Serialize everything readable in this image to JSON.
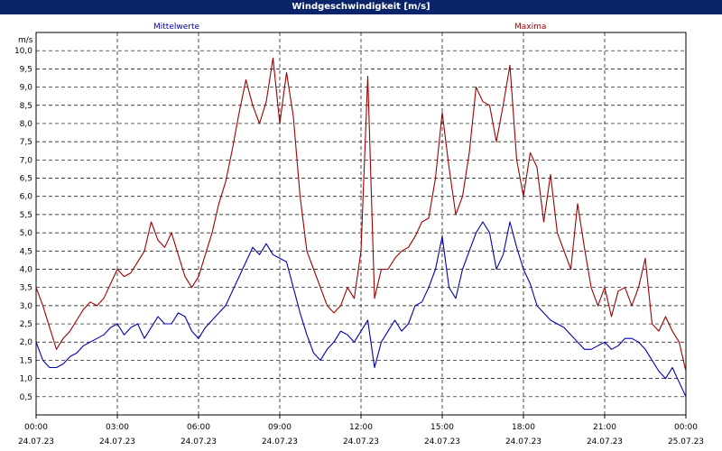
{
  "window": {
    "title": "Windgeschwindigkeit [m/s]"
  },
  "colors": {
    "titlebar": "#0a246a",
    "mittelwerte": "#0000b0",
    "maxima": "#a00000",
    "grid": "#000000"
  },
  "chart_data": {
    "type": "line",
    "title": "Windgeschwindigkeit [m/s]",
    "ylabel": "m/s",
    "ylim": [
      0,
      10.5
    ],
    "yticks": [
      "0,5",
      "1,0",
      "1,5",
      "2,0",
      "2,5",
      "3,0",
      "3,5",
      "4,0",
      "4,5",
      "5,0",
      "5,5",
      "6,0",
      "6,5",
      "7,0",
      "7,5",
      "8,0",
      "8,5",
      "9,0",
      "9,5",
      "10,0"
    ],
    "x_ticks": [
      {
        "h": 0,
        "time": "00:00",
        "date": "24.07.23"
      },
      {
        "h": 3,
        "time": "03:00",
        "date": "24.07.23"
      },
      {
        "h": 6,
        "time": "06:00",
        "date": "24.07.23"
      },
      {
        "h": 9,
        "time": "09:00",
        "date": "24.07.23"
      },
      {
        "h": 12,
        "time": "12:00",
        "date": "24.07.23"
      },
      {
        "h": 15,
        "time": "15:00",
        "date": "24.07.23"
      },
      {
        "h": 18,
        "time": "18:00",
        "date": "24.07.23"
      },
      {
        "h": 21,
        "time": "21:00",
        "date": "24.07.23"
      },
      {
        "h": 24,
        "time": "00:00",
        "date": "25.07.23"
      }
    ],
    "grid": true,
    "series": [
      {
        "name": "Mittelwerte",
        "color": "#0000b0",
        "points": [
          [
            0.0,
            2.0
          ],
          [
            0.25,
            1.5
          ],
          [
            0.5,
            1.3
          ],
          [
            0.75,
            1.3
          ],
          [
            1.0,
            1.4
          ],
          [
            1.25,
            1.6
          ],
          [
            1.5,
            1.7
          ],
          [
            1.75,
            1.9
          ],
          [
            2.0,
            2.0
          ],
          [
            2.25,
            2.1
          ],
          [
            2.5,
            2.2
          ],
          [
            2.75,
            2.4
          ],
          [
            3.0,
            2.5
          ],
          [
            3.25,
            2.2
          ],
          [
            3.5,
            2.4
          ],
          [
            3.75,
            2.5
          ],
          [
            4.0,
            2.1
          ],
          [
            4.25,
            2.4
          ],
          [
            4.5,
            2.7
          ],
          [
            4.75,
            2.5
          ],
          [
            5.0,
            2.5
          ],
          [
            5.25,
            2.8
          ],
          [
            5.5,
            2.7
          ],
          [
            5.75,
            2.3
          ],
          [
            6.0,
            2.1
          ],
          [
            6.25,
            2.4
          ],
          [
            6.5,
            2.6
          ],
          [
            6.75,
            2.8
          ],
          [
            7.0,
            3.0
          ],
          [
            7.25,
            3.4
          ],
          [
            7.5,
            3.8
          ],
          [
            7.75,
            4.2
          ],
          [
            8.0,
            4.6
          ],
          [
            8.25,
            4.4
          ],
          [
            8.5,
            4.7
          ],
          [
            8.75,
            4.4
          ],
          [
            9.0,
            4.3
          ],
          [
            9.25,
            4.2
          ],
          [
            9.5,
            3.5
          ],
          [
            9.75,
            2.8
          ],
          [
            10.0,
            2.2
          ],
          [
            10.25,
            1.7
          ],
          [
            10.5,
            1.5
          ],
          [
            10.75,
            1.8
          ],
          [
            11.0,
            2.0
          ],
          [
            11.25,
            2.3
          ],
          [
            11.5,
            2.2
          ],
          [
            11.75,
            2.0
          ],
          [
            12.0,
            2.3
          ],
          [
            12.25,
            2.6
          ],
          [
            12.5,
            1.3
          ],
          [
            12.75,
            2.0
          ],
          [
            13.0,
            2.3
          ],
          [
            13.25,
            2.6
          ],
          [
            13.5,
            2.3
          ],
          [
            13.75,
            2.5
          ],
          [
            14.0,
            3.0
          ],
          [
            14.25,
            3.1
          ],
          [
            14.5,
            3.5
          ],
          [
            14.75,
            4.0
          ],
          [
            15.0,
            4.9
          ],
          [
            15.25,
            3.5
          ],
          [
            15.5,
            3.2
          ],
          [
            15.75,
            4.0
          ],
          [
            16.0,
            4.5
          ],
          [
            16.25,
            5.0
          ],
          [
            16.5,
            5.3
          ],
          [
            16.75,
            5.0
          ],
          [
            17.0,
            4.0
          ],
          [
            17.25,
            4.4
          ],
          [
            17.5,
            5.3
          ],
          [
            17.75,
            4.6
          ],
          [
            18.0,
            4.0
          ],
          [
            18.25,
            3.6
          ],
          [
            18.5,
            3.0
          ],
          [
            18.75,
            2.8
          ],
          [
            19.0,
            2.6
          ],
          [
            19.25,
            2.5
          ],
          [
            19.5,
            2.4
          ],
          [
            19.75,
            2.2
          ],
          [
            20.0,
            2.0
          ],
          [
            20.25,
            1.8
          ],
          [
            20.5,
            1.8
          ],
          [
            20.75,
            1.9
          ],
          [
            21.0,
            2.0
          ],
          [
            21.25,
            1.8
          ],
          [
            21.5,
            1.9
          ],
          [
            21.75,
            2.1
          ],
          [
            22.0,
            2.1
          ],
          [
            22.25,
            2.0
          ],
          [
            22.5,
            1.8
          ],
          [
            22.75,
            1.5
          ],
          [
            23.0,
            1.2
          ],
          [
            23.25,
            1.0
          ],
          [
            23.5,
            1.3
          ],
          [
            23.75,
            0.9
          ],
          [
            24.0,
            0.5
          ]
        ]
      },
      {
        "name": "Maxima",
        "color": "#a00000",
        "points": [
          [
            0.0,
            3.5
          ],
          [
            0.25,
            3.0
          ],
          [
            0.5,
            2.4
          ],
          [
            0.75,
            1.8
          ],
          [
            1.0,
            2.1
          ],
          [
            1.25,
            2.3
          ],
          [
            1.5,
            2.6
          ],
          [
            1.75,
            2.9
          ],
          [
            2.0,
            3.1
          ],
          [
            2.25,
            3.0
          ],
          [
            2.5,
            3.2
          ],
          [
            2.75,
            3.6
          ],
          [
            3.0,
            4.0
          ],
          [
            3.25,
            3.8
          ],
          [
            3.5,
            3.9
          ],
          [
            3.75,
            4.2
          ],
          [
            4.0,
            4.5
          ],
          [
            4.25,
            5.3
          ],
          [
            4.5,
            4.8
          ],
          [
            4.75,
            4.6
          ],
          [
            5.0,
            5.0
          ],
          [
            5.25,
            4.4
          ],
          [
            5.5,
            3.8
          ],
          [
            5.75,
            3.5
          ],
          [
            6.0,
            3.8
          ],
          [
            6.25,
            4.4
          ],
          [
            6.5,
            5.0
          ],
          [
            6.75,
            5.8
          ],
          [
            7.0,
            6.4
          ],
          [
            7.25,
            7.3
          ],
          [
            7.5,
            8.3
          ],
          [
            7.75,
            9.2
          ],
          [
            8.0,
            8.5
          ],
          [
            8.25,
            8.0
          ],
          [
            8.5,
            8.6
          ],
          [
            8.75,
            9.8
          ],
          [
            9.0,
            8.0
          ],
          [
            9.25,
            9.4
          ],
          [
            9.5,
            8.2
          ],
          [
            9.75,
            6.0
          ],
          [
            10.0,
            4.5
          ],
          [
            10.25,
            4.0
          ],
          [
            10.5,
            3.5
          ],
          [
            10.75,
            3.0
          ],
          [
            11.0,
            2.8
          ],
          [
            11.25,
            3.0
          ],
          [
            11.5,
            3.5
          ],
          [
            11.75,
            3.2
          ],
          [
            12.0,
            4.5
          ],
          [
            12.25,
            9.3
          ],
          [
            12.5,
            3.2
          ],
          [
            12.75,
            4.0
          ],
          [
            13.0,
            4.0
          ],
          [
            13.25,
            4.3
          ],
          [
            13.5,
            4.5
          ],
          [
            13.75,
            4.6
          ],
          [
            14.0,
            4.9
          ],
          [
            14.25,
            5.3
          ],
          [
            14.5,
            5.4
          ],
          [
            14.75,
            6.5
          ],
          [
            15.0,
            8.3
          ],
          [
            15.25,
            6.8
          ],
          [
            15.5,
            5.5
          ],
          [
            15.75,
            6.0
          ],
          [
            16.0,
            7.2
          ],
          [
            16.25,
            9.0
          ],
          [
            16.5,
            8.6
          ],
          [
            16.75,
            8.5
          ],
          [
            17.0,
            7.5
          ],
          [
            17.25,
            8.5
          ],
          [
            17.5,
            9.6
          ],
          [
            17.75,
            7.0
          ],
          [
            18.0,
            6.0
          ],
          [
            18.25,
            7.2
          ],
          [
            18.5,
            6.8
          ],
          [
            18.75,
            5.3
          ],
          [
            19.0,
            6.6
          ],
          [
            19.25,
            5.0
          ],
          [
            19.5,
            4.5
          ],
          [
            19.75,
            4.0
          ],
          [
            20.0,
            5.8
          ],
          [
            20.25,
            4.6
          ],
          [
            20.5,
            3.5
          ],
          [
            20.75,
            3.0
          ],
          [
            21.0,
            3.5
          ],
          [
            21.25,
            2.7
          ],
          [
            21.5,
            3.4
          ],
          [
            21.75,
            3.5
          ],
          [
            22.0,
            3.0
          ],
          [
            22.25,
            3.5
          ],
          [
            22.5,
            4.3
          ],
          [
            22.75,
            2.5
          ],
          [
            23.0,
            2.3
          ],
          [
            23.25,
            2.7
          ],
          [
            23.5,
            2.3
          ],
          [
            23.75,
            2.0
          ],
          [
            24.0,
            1.2
          ]
        ]
      }
    ]
  }
}
